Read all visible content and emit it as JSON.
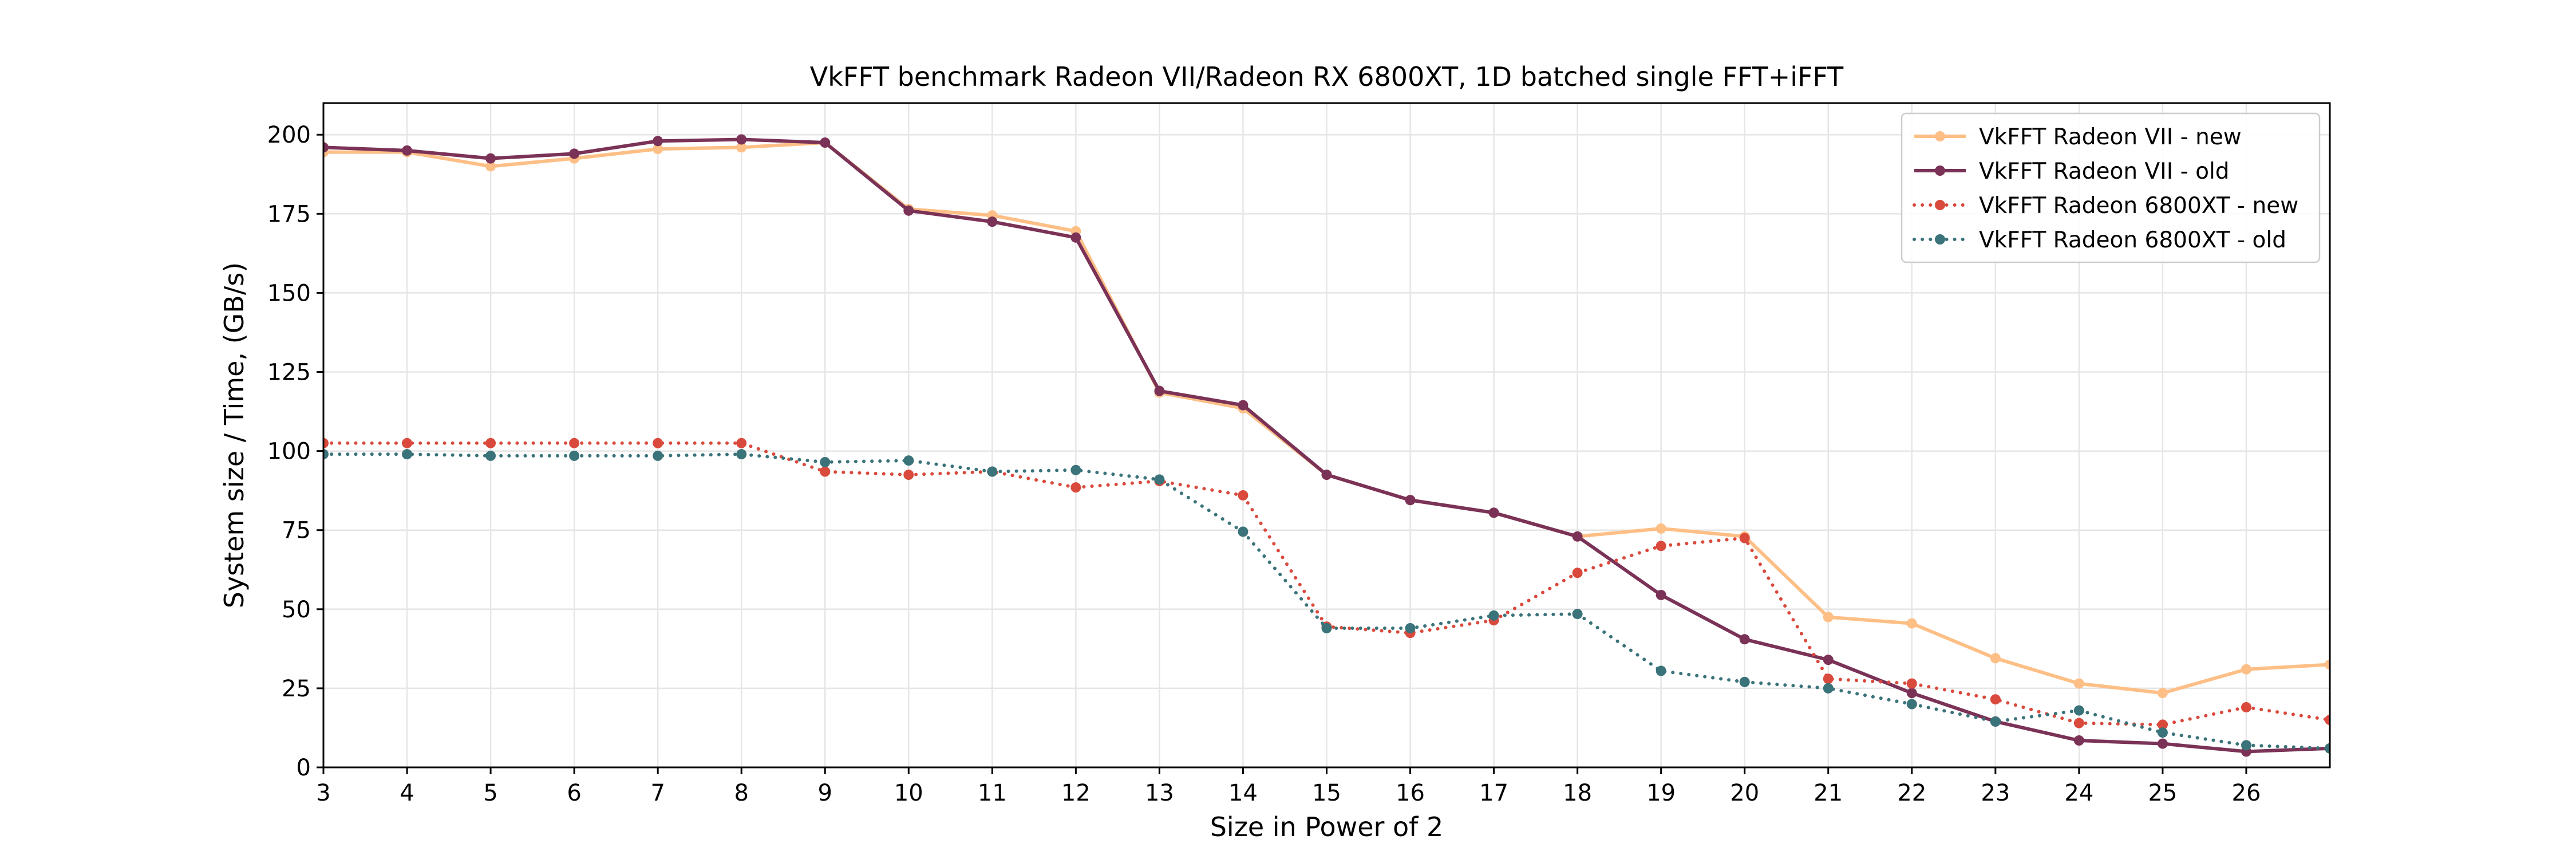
{
  "chart_data": {
    "type": "line",
    "title": "VkFFT benchmark Radeon VII/Radeon RX 6800XT, 1D batched single FFT+iFFT",
    "xlabel": "Size in Power of 2",
    "ylabel": "System size / Time, (GB/s)",
    "xlim": [
      3,
      27
    ],
    "ylim": [
      0,
      210
    ],
    "xticks": [
      3,
      4,
      5,
      6,
      7,
      8,
      9,
      10,
      11,
      12,
      13,
      14,
      15,
      16,
      17,
      18,
      19,
      20,
      21,
      22,
      23,
      24,
      25,
      26
    ],
    "yticks": [
      0,
      25,
      50,
      75,
      100,
      125,
      150,
      175,
      200
    ],
    "grid": true,
    "legend_position": "top-right",
    "x": [
      3,
      4,
      5,
      6,
      7,
      8,
      9,
      10,
      11,
      12,
      13,
      14,
      15,
      16,
      17,
      18,
      19,
      20,
      21,
      22,
      23,
      24,
      25,
      26,
      27
    ],
    "series": [
      {
        "name": "VkFFT Radeon VII - new",
        "color": "#fdbf86",
        "dash": "solid",
        "values": [
          194.5,
          194.5,
          190,
          192.5,
          195.5,
          196,
          197.5,
          176.5,
          174.5,
          169.5,
          118.5,
          113.5,
          92.5,
          84.5,
          80.5,
          73,
          75.5,
          73,
          47.5,
          45.5,
          34.5,
          26.5,
          23.5,
          31,
          32.5
        ]
      },
      {
        "name": "VkFFT Radeon VII - old",
        "color": "#7b3257",
        "dash": "solid",
        "values": [
          196,
          195,
          192.5,
          194,
          198,
          198.5,
          197.5,
          176,
          172.5,
          167.5,
          119,
          114.5,
          92.5,
          84.5,
          80.5,
          73,
          54.5,
          40.5,
          34,
          23.5,
          14.5,
          8.5,
          7.5,
          5,
          6
        ]
      },
      {
        "name": "VkFFT Radeon 6800XT - new",
        "color": "#d94a3d",
        "dash": "dotted",
        "values": [
          102.5,
          102.5,
          102.5,
          102.5,
          102.5,
          102.5,
          93.5,
          92.5,
          93.5,
          88.5,
          90.5,
          86,
          44.5,
          42.5,
          46.5,
          61.5,
          70,
          72.5,
          28,
          26.5,
          21.5,
          14,
          13.5,
          19,
          15
        ]
      },
      {
        "name": "VkFFT Radeon 6800XT - old",
        "color": "#3a7379",
        "dash": "dotted",
        "values": [
          99,
          99,
          98.5,
          98.5,
          98.5,
          99,
          96.5,
          97,
          93.5,
          94,
          91,
          74.5,
          44,
          44,
          48,
          48.5,
          30.5,
          27,
          25,
          20,
          14.5,
          18,
          11,
          7,
          6
        ]
      }
    ]
  }
}
